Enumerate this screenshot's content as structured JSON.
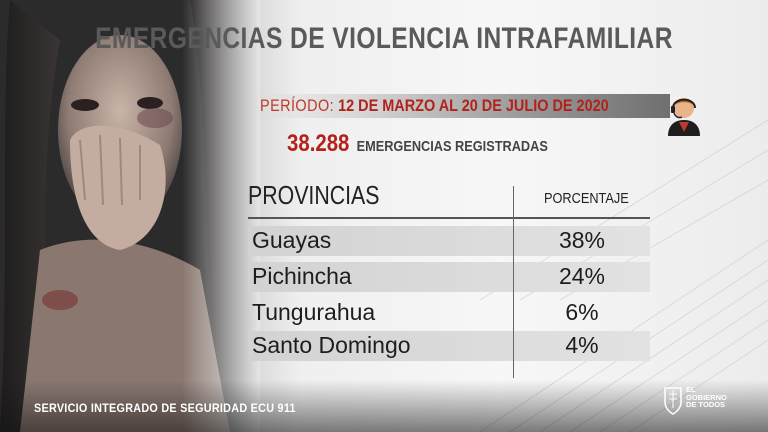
{
  "header": {
    "title": "EMERGENCIAS DE VIOLENCIA INTRAFAMILIAR"
  },
  "period": {
    "label": "PERÍODO:",
    "value": "12 DE MARZO AL 20 DE JULIO DE 2020"
  },
  "emergencies": {
    "count": "38.288",
    "label": "EMERGENCIAS REGISTRADAS"
  },
  "table": {
    "col_province": "PROVINCIAS",
    "col_percent": "PORCENTAJE",
    "rows": [
      {
        "province": "Guayas",
        "percent": "38%"
      },
      {
        "province": "Pichincha",
        "percent": "24%"
      },
      {
        "province": "Tungurahua",
        "percent": "6%"
      },
      {
        "province": "Santo Domingo",
        "percent": "4%"
      }
    ]
  },
  "footer": {
    "service": "SERVICIO INTEGRADO DE SEGURIDAD ECU 911"
  },
  "logo": {
    "line1": "EL",
    "line2": "GOBIERNO",
    "line3": "DE TODOS"
  },
  "icons": {
    "agent": "call-center-agent-icon",
    "shield": "government-shield-icon"
  },
  "colors": {
    "accent_red": "#b3221a",
    "title_grey": "#5a5a5a"
  }
}
